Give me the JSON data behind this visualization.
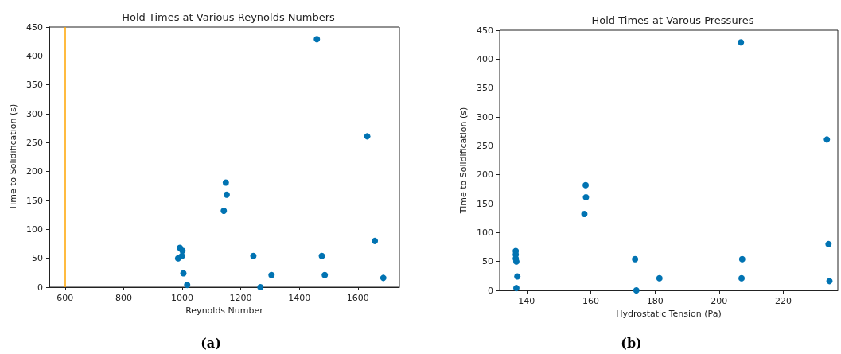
{
  "chart_data": [
    {
      "type": "scatter",
      "title": "Hold Times at Various Reynolds Numbers",
      "xlabel": "Reynolds Number",
      "ylabel": "Time to Solidification (s)",
      "x": [
        986,
        992,
        1001,
        999,
        1004,
        1017,
        1142,
        1149,
        1152,
        1243,
        1267,
        1305,
        1460,
        1477,
        1487,
        1632,
        1658,
        1687
      ],
      "series": [
        {
          "color": "#0173b2",
          "values": [
            50,
            68,
            63,
            54,
            24,
            4,
            132,
            181,
            160,
            54,
            0,
            21,
            429,
            54,
            21,
            261,
            80,
            16
          ]
        }
      ],
      "xlim": [
        546,
        1742
      ],
      "xticks": [
        600,
        800,
        1000,
        1200,
        1400,
        1600
      ],
      "ylim": [
        0,
        450
      ],
      "yticks": [
        0,
        50,
        100,
        150,
        200,
        250,
        300,
        350,
        400,
        450
      ],
      "ref_lines": [
        {
          "axis": "x",
          "value": 600,
          "color": "#ffa500",
          "line_style": "solid"
        }
      ],
      "marker": "circle",
      "grid": false,
      "annotations": [
        "(a)"
      ]
    },
    {
      "type": "scatter",
      "title": "Hold Times at Varous Pressures",
      "xlabel": "Hydrostatic Tension (Pa)",
      "ylabel": "Time to Solidification (s)",
      "x": [
        136.6,
        136.6,
        136.6,
        136.8,
        137.1,
        136.8,
        158.0,
        158.4,
        158.5,
        173.8,
        174.2,
        181.4,
        206.8,
        207.2,
        207.0,
        233.6,
        234.1,
        234.4
      ],
      "series": [
        {
          "color": "#0173b2",
          "values": [
            68,
            62,
            55,
            50,
            24,
            4,
            132,
            182,
            161,
            54,
            0,
            21,
            429,
            54,
            21,
            261,
            80,
            16
          ]
        }
      ],
      "xlim": [
        131.6,
        237
      ],
      "xticks": [
        140,
        160,
        180,
        200,
        220
      ],
      "ylim": [
        0,
        450
      ],
      "yticks": [
        0,
        50,
        100,
        150,
        200,
        250,
        300,
        350,
        400,
        450
      ],
      "marker": "circle",
      "grid": false,
      "annotations": [
        "(b)"
      ]
    }
  ]
}
